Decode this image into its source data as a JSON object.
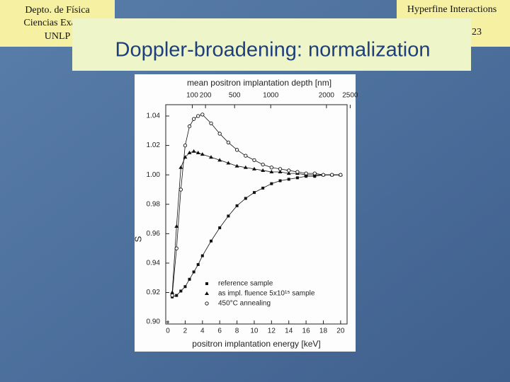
{
  "slide": {
    "institution": [
      "Depto. de Física",
      "Ciencias Exactas",
      "UNLP"
    ],
    "course": "Hyperfine Interactions",
    "page": "23",
    "title": "Doppler-broadening: normalization"
  },
  "chart_data": {
    "type": "scatter",
    "x_label": "positron implantation energy [keV]",
    "y_label": "S",
    "x2_label": "mean positron implantation depth [nm]",
    "xlim": [
      -0.25,
      20.75
    ],
    "xticks": [
      0,
      2,
      4,
      6,
      8,
      10,
      12,
      14,
      16,
      18,
      20
    ],
    "ylim": [
      0.8986,
      1.0477
    ],
    "yticks": [
      {
        "value": 0.9,
        "label": "0.90"
      },
      0.92,
      0.94,
      0.96,
      0.98,
      {
        "value": 1.0,
        "label": "1.00"
      },
      1.02,
      1.04
    ],
    "x2scale": {
      "power": 1.6,
      "factor": 19
    },
    "x2ticks": [
      100,
      200,
      500,
      1000,
      2000,
      2500
    ],
    "x": [
      0.5,
      1,
      1.5,
      2,
      2.5,
      3,
      3.5,
      4,
      5,
      6,
      7,
      8,
      9,
      10,
      11,
      12,
      13,
      14,
      15,
      16,
      17,
      18,
      19,
      20
    ],
    "series": [
      {
        "name": "reference sample",
        "color": "#111111",
        "marker": "square",
        "values": [
          0.917,
          0.918,
          0.921,
          0.924,
          0.929,
          0.934,
          0.939,
          0.945,
          0.955,
          0.964,
          0.972,
          0.979,
          0.984,
          0.988,
          0.991,
          0.994,
          0.996,
          0.997,
          0.998,
          0.999,
          0.999,
          1.0,
          1.0,
          1.0
        ]
      },
      {
        "name": "as impl. fluence 5x10¹⁵ sample",
        "color": "#111111",
        "marker": "triangle",
        "values": [
          0.92,
          0.965,
          1.005,
          1.012,
          1.015,
          1.016,
          1.015,
          1.014,
          1.012,
          1.01,
          1.008,
          1.006,
          1.005,
          1.004,
          1.003,
          1.002,
          1.002,
          1.001,
          1.001,
          1.0,
          1.0,
          1.0,
          1.0,
          1.0
        ]
      },
      {
        "name": "450°C annealing",
        "color": "#111111",
        "marker": "circle",
        "values": [
          0.918,
          0.95,
          0.99,
          1.02,
          1.033,
          1.038,
          1.04,
          1.041,
          1.035,
          1.028,
          1.022,
          1.017,
          1.013,
          1.01,
          1.007,
          1.005,
          1.004,
          1.003,
          1.002,
          1.001,
          1.001,
          1.0,
          1.0,
          1.0
        ]
      }
    ]
  }
}
